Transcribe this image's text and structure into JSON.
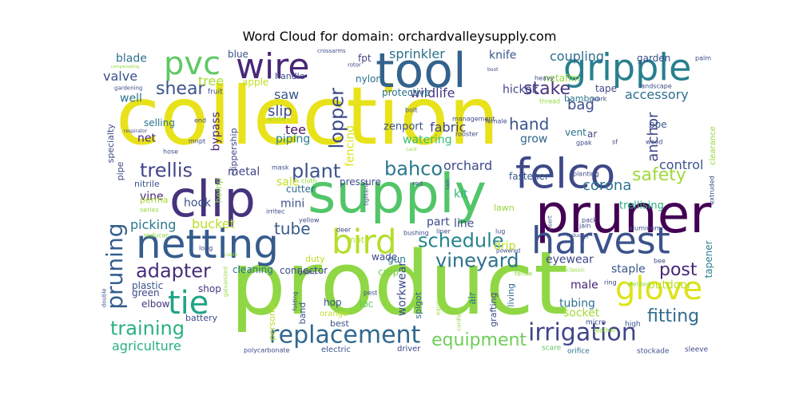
{
  "chart_data": {
    "type": "wordcloud",
    "title": "Word Cloud for domain: orchardvalleysupply.com",
    "words": [
      {
        "text": "collection",
        "rank": 1,
        "color": "#e8e21a"
      },
      {
        "text": "product",
        "rank": 2,
        "color": "#8fd744"
      },
      {
        "text": "supply",
        "rank": 3,
        "color": "#52c569"
      },
      {
        "text": "clip",
        "rank": 4,
        "color": "#46337e"
      },
      {
        "text": "pruner",
        "rank": 5,
        "color": "#440154"
      },
      {
        "text": "tool",
        "rank": 6,
        "color": "#33638d"
      },
      {
        "text": "felco",
        "rank": 7,
        "color": "#3e4989"
      },
      {
        "text": "netting",
        "rank": 8,
        "color": "#365c8d"
      },
      {
        "text": "harvest",
        "rank": 9,
        "color": "#3b528b"
      },
      {
        "text": "gripple",
        "rank": 10,
        "color": "#277f8e"
      },
      {
        "text": "wire",
        "rank": 11,
        "color": "#482878"
      },
      {
        "text": "bird",
        "rank": 12,
        "color": "#b5de2b"
      },
      {
        "text": "pvc",
        "rank": 13,
        "color": "#5ec962"
      },
      {
        "text": "replacement",
        "rank": 14,
        "color": "#31688e"
      },
      {
        "text": "tie",
        "rank": 15,
        "color": "#20a486"
      },
      {
        "text": "glove",
        "rank": 16,
        "color": "#dde318"
      },
      {
        "text": "pruning",
        "rank": 17,
        "color": "#355f8d"
      },
      {
        "text": "irrigation",
        "rank": 18,
        "color": "#404688"
      },
      {
        "text": "training",
        "rank": 19,
        "color": "#2ab07f"
      },
      {
        "text": "schedule",
        "rank": 20,
        "color": "#25848e"
      },
      {
        "text": "trellis",
        "rank": 21,
        "color": "#414487"
      },
      {
        "text": "plant",
        "rank": 22,
        "color": "#3b528b"
      },
      {
        "text": "vineyard",
        "rank": 23,
        "color": "#2c728e"
      },
      {
        "text": "equipment",
        "rank": 24,
        "color": "#6ece58"
      },
      {
        "text": "lopper",
        "rank": 25,
        "color": "#3e4a89"
      },
      {
        "text": "adapter",
        "rank": 26,
        "color": "#472d7b"
      },
      {
        "text": "bahco",
        "rank": 27,
        "color": "#2a788e"
      },
      {
        "text": "safety",
        "rank": 28,
        "color": "#9fda3a"
      },
      {
        "text": "shear",
        "rank": 29,
        "color": "#3b528b"
      },
      {
        "text": "stake",
        "rank": 30,
        "color": "#46327e"
      },
      {
        "text": "post",
        "rank": 31,
        "color": "#482878"
      },
      {
        "text": "fitting",
        "rank": 32,
        "color": "#306a8e"
      },
      {
        "text": "tube",
        "rank": 33,
        "color": "#38588c"
      },
      {
        "text": "hand",
        "rank": 34,
        "color": "#3a548c"
      },
      {
        "text": "accessory",
        "rank": 35,
        "color": "#2e6f8e"
      },
      {
        "text": "anchor",
        "rank": 36,
        "color": "#3f4788"
      },
      {
        "text": "coupling",
        "rank": 37,
        "color": "#2e6e8e"
      },
      {
        "text": "sprinkler",
        "rank": 38,
        "color": "#2d708e"
      },
      {
        "text": "slip",
        "rank": 39,
        "color": "#3e4c8a"
      },
      {
        "text": "tree",
        "rank": 40,
        "color": "#a8db34"
      },
      {
        "text": "corona",
        "rank": 41,
        "color": "#2b758e"
      },
      {
        "text": "bag",
        "rank": 42,
        "color": "#3d4e8a"
      },
      {
        "text": "fabric",
        "rank": 43,
        "color": "#3f4889"
      },
      {
        "text": "orchard",
        "rank": 44,
        "color": "#3e4989"
      },
      {
        "text": "wildlife",
        "rank": 45,
        "color": "#453781"
      },
      {
        "text": "control",
        "rank": 46,
        "color": "#3a548c"
      },
      {
        "text": "agriculture",
        "rank": 47,
        "color": "#2ab07f"
      },
      {
        "text": "picking",
        "rank": 48,
        "color": "#2a788e"
      },
      {
        "text": "bucket",
        "rank": 49,
        "color": "#b8de29"
      },
      {
        "text": "valve",
        "rank": 50,
        "color": "#3b528b"
      },
      {
        "text": "blade",
        "rank": 51,
        "color": "#2e6e8e"
      },
      {
        "text": "tee",
        "rank": 52,
        "color": "#471164"
      },
      {
        "text": "saw",
        "rank": 53,
        "color": "#39568c"
      },
      {
        "text": "bypass",
        "rank": 54,
        "color": "#482475"
      },
      {
        "text": "fencing",
        "rank": 55,
        "color": "#dde318"
      },
      {
        "text": "well",
        "rank": 56,
        "color": "#2c728e"
      },
      {
        "text": "knife",
        "rank": 57,
        "color": "#39568c"
      },
      {
        "text": "hickok",
        "rank": 58,
        "color": "#414487"
      },
      {
        "text": "grow",
        "rank": 59,
        "color": "#31688e"
      },
      {
        "text": "watering",
        "rank": 60,
        "color": "#3bbb75"
      },
      {
        "text": "net",
        "rank": 61,
        "color": "#482878"
      },
      {
        "text": "piping",
        "rank": 62,
        "color": "#287d8e"
      },
      {
        "text": "metal",
        "rank": 63,
        "color": "#404688"
      },
      {
        "text": "sale",
        "rank": 64,
        "color": "#c2df23"
      },
      {
        "text": "kit",
        "rank": 65,
        "color": "#2db27d"
      },
      {
        "text": "drip",
        "rank": 66,
        "color": "#bddf26"
      },
      {
        "text": "tapener",
        "rank": 67,
        "color": "#277f8e"
      },
      {
        "text": "eyewear",
        "rank": 68,
        "color": "#3f4889"
      },
      {
        "text": "part",
        "rank": 69,
        "color": "#3e4a89"
      },
      {
        "text": "line",
        "rank": 70,
        "color": "#3e4a89"
      },
      {
        "text": "workwear",
        "rank": 71,
        "color": "#3e4a89"
      },
      {
        "text": "tubing",
        "rank": 72,
        "color": "#2c728e"
      },
      {
        "text": "socket",
        "rank": 73,
        "color": "#a2da37"
      },
      {
        "text": "male",
        "rank": 74,
        "color": "#482475"
      },
      {
        "text": "outdoor",
        "rank": 75,
        "color": "#b8de29"
      },
      {
        "text": "staple",
        "rank": 76,
        "color": "#39568c"
      },
      {
        "text": "vine",
        "rank": 77,
        "color": "#482878"
      },
      {
        "text": "hook",
        "rank": 78,
        "color": "#3b528b"
      },
      {
        "text": "mini",
        "rank": 79,
        "color": "#3d4e8a"
      },
      {
        "text": "cutter",
        "rank": 80,
        "color": "#2f6c8e"
      },
      {
        "text": "pressure",
        "rank": 81,
        "color": "#3e4a89"
      },
      {
        "text": "trellising",
        "rank": 82,
        "color": "#2ab07f"
      },
      {
        "text": "zenport",
        "rank": 83,
        "color": "#3b528b"
      },
      {
        "text": "fastener",
        "rank": 84,
        "color": "#38588c"
      },
      {
        "text": "tape",
        "rank": 85,
        "color": "#404688"
      },
      {
        "text": "netafim",
        "rank": 86,
        "color": "#95d840"
      },
      {
        "text": "garden",
        "rank": 87,
        "color": "#3b528b"
      },
      {
        "text": "fpt",
        "rank": 88,
        "color": "#414487"
      },
      {
        "text": "nylon",
        "rank": 89,
        "color": "#2e6e8e"
      },
      {
        "text": "protective",
        "rank": 90,
        "color": "#2c728e"
      },
      {
        "text": "bamboo",
        "rank": 91,
        "color": "#2a788e"
      },
      {
        "text": "vent",
        "rank": 92,
        "color": "#2c728e"
      },
      {
        "text": "ar",
        "rank": 93,
        "color": "#3e4a89"
      },
      {
        "text": "ppe",
        "rank": 94,
        "color": "#39568c"
      },
      {
        "text": "handle",
        "rank": 95,
        "color": "#3e4a89"
      },
      {
        "text": "blue",
        "rank": 96,
        "color": "#3b528b"
      },
      {
        "text": "apple",
        "rank": 97,
        "color": "#c2df23"
      },
      {
        "text": "selling",
        "rank": 98,
        "color": "#2c728e"
      },
      {
        "text": "specialty",
        "rank": 99,
        "color": "#3e4a89"
      },
      {
        "text": "pipe",
        "rank": 100,
        "color": "#3e4a89"
      },
      {
        "text": "clippership",
        "rank": 101,
        "color": "#414487"
      },
      {
        "text": "nitrile",
        "rank": 102,
        "color": "#3b528b"
      },
      {
        "text": "perma",
        "rank": 103,
        "color": "#a8db34"
      },
      {
        "text": "hemp",
        "rank": 104,
        "color": "#8fd744"
      },
      {
        "text": "plastic",
        "rank": 105,
        "color": "#39568c"
      },
      {
        "text": "green",
        "rank": 106,
        "color": "#3e4a89"
      },
      {
        "text": "elbow",
        "rank": 107,
        "color": "#46337e"
      },
      {
        "text": "shop",
        "rank": 108,
        "color": "#453781"
      },
      {
        "text": "cleaning",
        "rank": 109,
        "color": "#2c728e"
      },
      {
        "text": "connector",
        "rank": 110,
        "color": "#3e4a89"
      },
      {
        "text": "hop",
        "rank": 111,
        "color": "#3b528b"
      },
      {
        "text": "loc",
        "rank": 112,
        "color": "#5ec962"
      },
      {
        "text": "gun",
        "rank": 113,
        "color": "#2c728e"
      },
      {
        "text": "crop",
        "rank": 114,
        "color": "#7ad151"
      },
      {
        "text": "wade",
        "rank": 115,
        "color": "#3e4a89"
      },
      {
        "text": "duty",
        "rank": 116,
        "color": "#c2df23"
      },
      {
        "text": "mpt",
        "rank": 117,
        "color": "#b8de29"
      },
      {
        "text": "spigot",
        "rank": 118,
        "color": "#31688e"
      },
      {
        "text": "air",
        "rank": 119,
        "color": "#2c728e"
      },
      {
        "text": "grafting",
        "rank": 120,
        "color": "#3e4a89"
      },
      {
        "text": "living",
        "rank": 121,
        "color": "#2e6e8e"
      },
      {
        "text": "lawn",
        "rank": 122,
        "color": "#95d840"
      },
      {
        "text": "best",
        "rank": 123,
        "color": "#3b528b"
      },
      {
        "text": "band",
        "rank": 124,
        "color": "#3b528b"
      },
      {
        "text": "personal",
        "rank": 125,
        "color": "#b8de29"
      },
      {
        "text": "battery",
        "rank": 126,
        "color": "#3e4a89"
      },
      {
        "text": "orange",
        "rank": 127,
        "color": "#c2df23"
      },
      {
        "text": "electric",
        "rank": 128,
        "color": "#39568c"
      },
      {
        "text": "driver",
        "rank": 129,
        "color": "#3e4a89"
      },
      {
        "text": "scare",
        "rank": 130,
        "color": "#5ec962"
      },
      {
        "text": "orifice",
        "rank": 131,
        "color": "#2a788e"
      },
      {
        "text": "stockade",
        "rank": 132,
        "color": "#3b528b"
      },
      {
        "text": "sleeve",
        "rank": 133,
        "color": "#3e4a89"
      },
      {
        "text": "polycarbonate",
        "rank": 134,
        "color": "#3e4a89"
      },
      {
        "text": "high",
        "rank": 135,
        "color": "#3b528b"
      },
      {
        "text": "micro",
        "rank": 136,
        "color": "#3e4a89"
      },
      {
        "text": "leather",
        "rank": 137,
        "color": "#95d840"
      },
      {
        "text": "welded",
        "rank": 138,
        "color": "#95d840"
      },
      {
        "text": "ring",
        "rank": 139,
        "color": "#3e4a89"
      },
      {
        "text": "bee",
        "rank": 140,
        "color": "#3e4a89"
      },
      {
        "text": "aluminum",
        "rank": 141,
        "color": "#3b528b"
      },
      {
        "text": "jain",
        "rank": 142,
        "color": "#3e4a89"
      },
      {
        "text": "pack",
        "rank": 143,
        "color": "#3e4a89"
      },
      {
        "text": "insert",
        "rank": 144,
        "color": "#3e4a89"
      },
      {
        "text": "lug",
        "rank": 145,
        "color": "#3e4a89"
      },
      {
        "text": "liner",
        "rank": 146,
        "color": "#3e4a89"
      },
      {
        "text": "bushing",
        "rank": 147,
        "color": "#3e4a89"
      },
      {
        "text": "deer",
        "rank": 148,
        "color": "#3e4a89"
      },
      {
        "text": "yellow",
        "rank": 149,
        "color": "#3e4a89"
      },
      {
        "text": "irritec",
        "rank": 150,
        "color": "#3e4a89"
      },
      {
        "text": "series",
        "rank": 151,
        "color": "#95d840"
      },
      {
        "text": "reducer",
        "rank": 152,
        "color": "#95d840"
      },
      {
        "text": "long",
        "rank": 153,
        "color": "#3e4a89"
      },
      {
        "text": "galvanized",
        "rank": 154,
        "color": "#95d840"
      },
      {
        "text": "double",
        "rank": 155,
        "color": "#3e4a89"
      },
      {
        "text": "folding",
        "rank": 156,
        "color": "#3e4a89"
      },
      {
        "text": "guard",
        "rank": 157,
        "color": "#3e4a89"
      },
      {
        "text": "pest",
        "rank": 158,
        "color": "#3e4a89"
      },
      {
        "text": "equip",
        "rank": 159,
        "color": "#95d840"
      },
      {
        "text": "fence",
        "rank": 160,
        "color": "#95d840"
      },
      {
        "text": "classic",
        "rank": 161,
        "color": "#95d840"
      },
      {
        "text": "powered",
        "rank": 162,
        "color": "#3e4a89"
      },
      {
        "text": "cordless",
        "rank": 163,
        "color": "#95d840"
      },
      {
        "text": "mask",
        "rank": 164,
        "color": "#3e4a89"
      },
      {
        "text": "cloth",
        "rank": 165,
        "color": "#95d840"
      },
      {
        "text": "tightener",
        "rank": 166,
        "color": "#3e4a89"
      },
      {
        "text": "red",
        "rank": 167,
        "color": "#3e4a89"
      },
      {
        "text": "rain",
        "rank": 168,
        "color": "#3e4a89"
      },
      {
        "text": "planting",
        "rank": 169,
        "color": "#3e4a89"
      },
      {
        "text": "extruded",
        "rank": 170,
        "color": "#3e4a89"
      },
      {
        "text": "reducing",
        "rank": 171,
        "color": "#3e4a89"
      },
      {
        "text": "card",
        "rank": 172,
        "color": "#95d840"
      },
      {
        "text": "rooster",
        "rank": 173,
        "color": "#3e4a89"
      },
      {
        "text": "female",
        "rank": 174,
        "color": "#3e4a89"
      },
      {
        "text": "gpak",
        "rank": 175,
        "color": "#3e4a89"
      },
      {
        "text": "sf",
        "rank": 176,
        "color": "#3e4a89"
      },
      {
        "text": "weed",
        "rank": 177,
        "color": "#3e4a89"
      },
      {
        "text": "clearance",
        "rank": 178,
        "color": "#95d840"
      },
      {
        "text": "management",
        "rank": 179,
        "color": "#3e4a89"
      },
      {
        "text": "bolt",
        "rank": 180,
        "color": "#3e4a89"
      },
      {
        "text": "thread",
        "rank": 181,
        "color": "#95d840"
      },
      {
        "text": "work",
        "rank": 182,
        "color": "#3e4a89"
      },
      {
        "text": "landscape",
        "rank": 183,
        "color": "#3e4a89"
      },
      {
        "text": "heavy",
        "rank": 184,
        "color": "#3e4a89"
      },
      {
        "text": "palm",
        "rank": 185,
        "color": "#3e4a89"
      },
      {
        "text": "boot",
        "rank": 186,
        "color": "#3e4a89"
      },
      {
        "text": "rotor",
        "rank": 187,
        "color": "#3e4a89"
      },
      {
        "text": "crossarms",
        "rank": 188,
        "color": "#3e4a89"
      },
      {
        "text": "fruit",
        "rank": 189,
        "color": "#3e4a89"
      },
      {
        "text": "white",
        "rank": 190,
        "color": "#95d840"
      },
      {
        "text": "end",
        "rank": 191,
        "color": "#3e4a89"
      },
      {
        "text": "mnpt",
        "rank": 192,
        "color": "#3e4a89"
      },
      {
        "text": "hose",
        "rank": 193,
        "color": "#3e4a89"
      },
      {
        "text": "respirator",
        "rank": 194,
        "color": "#3e4a89"
      },
      {
        "text": "gardening",
        "rank": 195,
        "color": "#3e4a89"
      },
      {
        "text": "compensating",
        "rank": 196,
        "color": "#95d840"
      },
      {
        "text": "cable",
        "rank": 197,
        "color": "#95d840"
      }
    ]
  }
}
